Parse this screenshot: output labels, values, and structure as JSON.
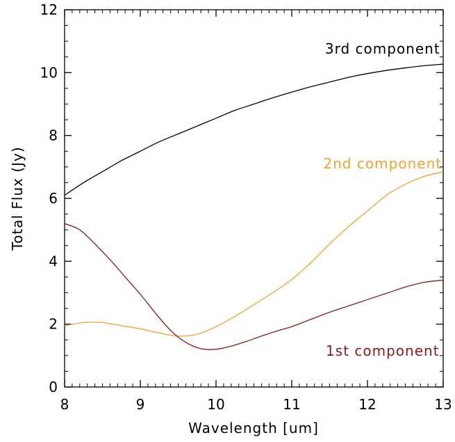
{
  "chart_data": {
    "type": "line",
    "title": "",
    "xlabel": "Wavelength [um]",
    "ylabel": "Total Flux (Jy)",
    "xlim": [
      8,
      13
    ],
    "ylim": [
      0,
      12
    ],
    "xticks": [
      "8",
      "9",
      "10",
      "11",
      "12",
      "13"
    ],
    "yticks": [
      "0",
      "2",
      "4",
      "6",
      "8",
      "10",
      "12"
    ],
    "x_minor_ticks_per_major": 10,
    "y_minor_ticks_per_major": 4,
    "grid": false,
    "series": [
      {
        "name": "3rd component",
        "color": "#000000",
        "x": [
          8.0,
          8.25,
          8.5,
          8.75,
          9.0,
          9.25,
          9.5,
          9.75,
          10.0,
          10.25,
          10.5,
          10.75,
          11.0,
          11.25,
          11.5,
          11.75,
          12.0,
          12.25,
          12.5,
          12.75,
          13.0
        ],
        "y": [
          6.1,
          6.5,
          6.85,
          7.2,
          7.5,
          7.8,
          8.05,
          8.3,
          8.55,
          8.8,
          9.0,
          9.2,
          9.38,
          9.55,
          9.7,
          9.85,
          9.97,
          10.07,
          10.15,
          10.22,
          10.27
        ]
      },
      {
        "name": "2nd component",
        "color": "#f5a030",
        "x": [
          8.0,
          8.25,
          8.5,
          8.75,
          9.0,
          9.25,
          9.5,
          9.75,
          10.0,
          10.25,
          10.5,
          10.75,
          11.0,
          11.25,
          11.5,
          11.75,
          12.0,
          12.25,
          12.5,
          12.75,
          13.0
        ],
        "y": [
          1.95,
          2.05,
          2.05,
          1.95,
          1.85,
          1.72,
          1.62,
          1.68,
          1.92,
          2.25,
          2.62,
          3.0,
          3.42,
          3.95,
          4.55,
          5.1,
          5.6,
          6.1,
          6.45,
          6.7,
          6.85
        ]
      },
      {
        "name": "1st component",
        "color": "#8b1a1a",
        "x": [
          8.0,
          8.2,
          8.4,
          8.6,
          8.8,
          9.0,
          9.2,
          9.4,
          9.6,
          9.8,
          10.0,
          10.2,
          10.4,
          10.6,
          10.8,
          11.0,
          11.25,
          11.5,
          11.75,
          12.0,
          12.25,
          12.5,
          12.75,
          13.0
        ],
        "y": [
          5.2,
          5.0,
          4.55,
          4.05,
          3.5,
          2.95,
          2.35,
          1.8,
          1.42,
          1.22,
          1.2,
          1.3,
          1.45,
          1.62,
          1.78,
          1.92,
          2.15,
          2.38,
          2.58,
          2.78,
          2.98,
          3.18,
          3.33,
          3.4
        ]
      }
    ],
    "annotations": [
      {
        "text": "3rd component",
        "x": 12.2,
        "y": 10.6,
        "color": "#000000"
      },
      {
        "text": "2nd component",
        "x": 12.2,
        "y": 6.95,
        "color": "#f5a030"
      },
      {
        "text": "1st component",
        "x": 12.2,
        "y": 1.0,
        "color": "#8b1a1a"
      }
    ]
  }
}
